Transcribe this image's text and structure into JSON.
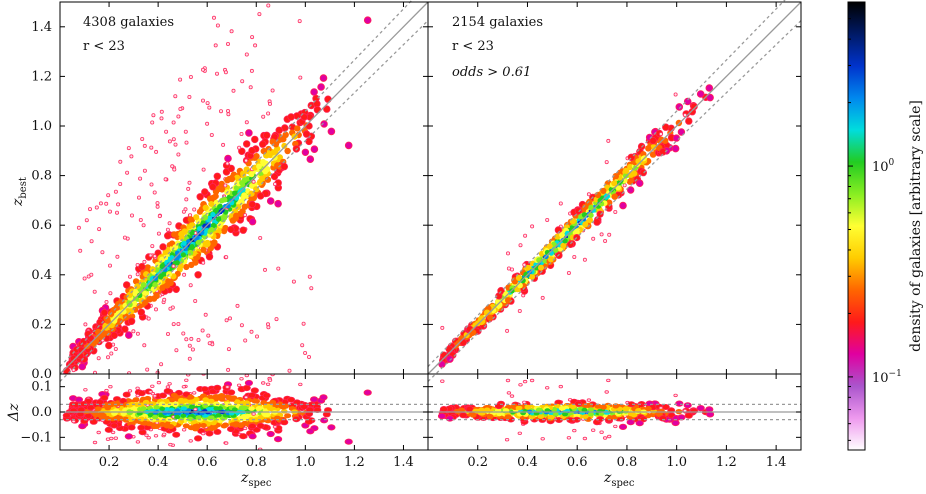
{
  "chart_data": {
    "type": "scatter",
    "description_series": "photometric vs spectroscopic redshift density contours",
    "panels": [
      {
        "id": "left",
        "annotations": [
          "4308 galaxies",
          "r < 23"
        ],
        "n_galaxies": 4308,
        "xlim": [
          0.0,
          1.5
        ],
        "ylim_top": [
          0.0,
          1.5
        ],
        "ylim_bottom": [
          -0.15,
          0.15
        ],
        "outlier_band": 0.03,
        "scatter_sigma": 0.045
      },
      {
        "id": "right",
        "annotations": [
          "2154 galaxies",
          "r < 23",
          "odds > 0.61"
        ],
        "n_galaxies": 2154,
        "xlim": [
          0.0,
          1.5
        ],
        "ylim_top": [
          0.0,
          1.5
        ],
        "ylim_bottom": [
          -0.15,
          0.15
        ],
        "outlier_band": 0.03,
        "scatter_sigma": 0.02
      }
    ],
    "x_ticks": [
      "0.2",
      "0.4",
      "0.6",
      "0.8",
      "1.0",
      "1.2",
      "1.4"
    ],
    "x_tick_values": [
      0.2,
      0.4,
      0.6,
      0.8,
      1.0,
      1.2,
      1.4
    ],
    "y_ticks_top": [
      "0.0",
      "0.2",
      "0.4",
      "0.6",
      "0.8",
      "1.0",
      "1.2",
      "1.4"
    ],
    "y_tick_values_top": [
      0.0,
      0.2,
      0.4,
      0.6,
      0.8,
      1.0,
      1.2,
      1.4
    ],
    "y_ticks_bottom": [
      "0.1",
      "0.0",
      "−0.1"
    ],
    "y_tick_values_bottom": [
      0.1,
      0.0,
      -0.1
    ],
    "xlabel_main": "z",
    "xlabel_sub": "spec",
    "ylabel_top_main": "z",
    "ylabel_top_sub": "best",
    "ylabel_bottom": "Δz",
    "colorbar": {
      "label": "density of galaxies [arbitrary scale]",
      "scale": "log",
      "range": [
        0.045,
        6.0
      ],
      "ticks": [
        {
          "value": 1.0,
          "label": "10",
          "exp": "0"
        },
        {
          "value": 0.1,
          "label": "10",
          "exp": "−1"
        }
      ],
      "colors": [
        "#ffffff",
        "#ee99ee",
        "#aa55cc",
        "#e000a0",
        "#ff1a1a",
        "#ff6600",
        "#ffcc00",
        "#ffff33",
        "#88ee22",
        "#22cc22",
        "#00dddd",
        "#0088ee",
        "#0033cc",
        "#001a66",
        "#000000"
      ]
    }
  }
}
